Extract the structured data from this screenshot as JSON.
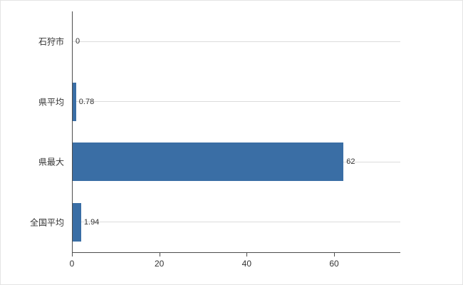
{
  "chart_data": {
    "type": "bar",
    "orientation": "horizontal",
    "title": "",
    "categories": [
      "石狩市",
      "県平均",
      "県最大",
      "全国平均"
    ],
    "values": [
      0,
      0.78,
      62,
      1.94
    ],
    "value_labels": [
      "0",
      "0.78",
      "62",
      "1.94"
    ],
    "x_ticks": [
      0,
      20,
      40,
      60
    ],
    "x_tick_labels": [
      "0",
      "20",
      "40",
      "60"
    ],
    "xlim": [
      0,
      75
    ],
    "grid": true,
    "legend": "none",
    "colors": {
      "bar": "#3a6ea5",
      "gridline": "#dcdcdc",
      "axis": "#4d4d4d",
      "text": "#333333",
      "background": "#ffffff"
    }
  }
}
